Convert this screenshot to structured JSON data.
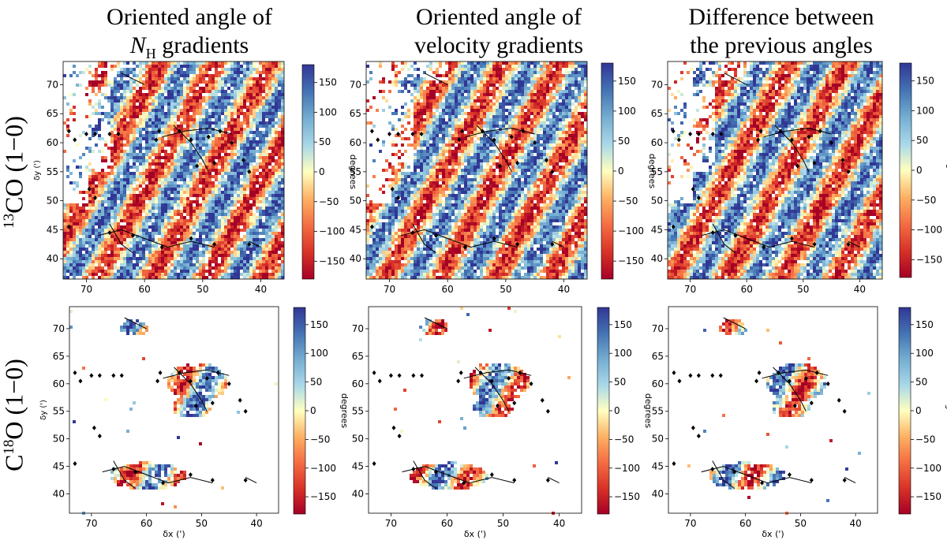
{
  "figure": {
    "column_titles": [
      {
        "line1": "Oriented angle of",
        "line2_italic": "N",
        "line2_sub": "H",
        "line2_rest": " gradients"
      },
      {
        "line1": "Oriented angle of",
        "line2": "velocity gradients"
      },
      {
        "line1": "Difference between",
        "line2": "the previous angles"
      }
    ],
    "row_labels": [
      {
        "sup": "13",
        "text": "CO",
        "transition": "(1−0)"
      },
      {
        "prefix": "C",
        "sup": "18",
        "text": "O",
        "transition": "(1−0)"
      }
    ]
  },
  "chart_data": [
    {
      "type": "heatmap",
      "row": "13CO (1-0)",
      "title": "Oriented angle of N_H gradients",
      "xlabel": "",
      "ylabel": "δy (')",
      "xlim": [
        74,
        36
      ],
      "ylim": [
        36.5,
        74
      ],
      "xticks": [
        70,
        60,
        50,
        40
      ],
      "yticks": [
        40,
        45,
        50,
        55,
        60,
        65,
        70
      ],
      "colorbar": {
        "label": "degrees",
        "ticks": [
          150,
          100,
          50,
          0,
          -50,
          -100,
          -150
        ],
        "range": [
          -180,
          180
        ],
        "colormap": "RdYlBu"
      },
      "coverage": "dense"
    },
    {
      "type": "heatmap",
      "row": "13CO (1-0)",
      "title": "Oriented angle of velocity gradients",
      "xlabel": "",
      "ylabel": "",
      "xlim": [
        74,
        36
      ],
      "ylim": [
        36.5,
        74
      ],
      "xticks": [
        70,
        60,
        50,
        40
      ],
      "yticks": [
        40,
        45,
        50,
        55,
        60,
        65,
        70
      ],
      "colorbar": {
        "label": "degrees",
        "ticks": [
          150,
          100,
          50,
          0,
          -50,
          -100,
          -150
        ],
        "range": [
          -180,
          180
        ],
        "colormap": "RdYlBu"
      },
      "coverage": "dense"
    },
    {
      "type": "heatmap",
      "row": "13CO (1-0)",
      "title": "Difference between the previous angles",
      "xlabel": "",
      "ylabel": "",
      "xlim": [
        74,
        36
      ],
      "ylim": [
        36.5,
        74
      ],
      "xticks": [
        70,
        60,
        50,
        40
      ],
      "yticks": [
        40,
        45,
        50,
        55,
        60,
        65,
        70
      ],
      "colorbar": {
        "label": "degrees",
        "ticks": [
          150,
          100,
          50,
          0,
          -50,
          -100,
          -150
        ],
        "range": [
          -180,
          180
        ],
        "colormap": "RdYlBu"
      },
      "coverage": "dense"
    },
    {
      "type": "heatmap",
      "row": "C18O (1-0)",
      "title": "",
      "xlabel": "δx (')",
      "ylabel": "δy (')",
      "xlim": [
        74,
        36
      ],
      "ylim": [
        36.5,
        74
      ],
      "xticks": [
        70,
        60,
        50,
        40
      ],
      "yticks": [
        40,
        45,
        50,
        55,
        60,
        65,
        70
      ],
      "colorbar": {
        "label": "degrees",
        "ticks": [
          150,
          100,
          50,
          0,
          -50,
          -100,
          -150
        ],
        "range": [
          -180,
          180
        ],
        "colormap": "RdYlBu"
      },
      "coverage": "sparse"
    },
    {
      "type": "heatmap",
      "row": "C18O (1-0)",
      "title": "",
      "xlabel": "δx (')",
      "ylabel": "",
      "xlim": [
        74,
        36
      ],
      "ylim": [
        36.5,
        74
      ],
      "xticks": [
        70,
        60,
        50,
        40
      ],
      "yticks": [
        40,
        45,
        50,
        55,
        60,
        65,
        70
      ],
      "colorbar": {
        "label": "degrees",
        "ticks": [
          150,
          100,
          50,
          0,
          -50,
          -100,
          -150
        ],
        "range": [
          -180,
          180
        ],
        "colormap": "RdYlBu"
      },
      "coverage": "sparse"
    },
    {
      "type": "heatmap",
      "row": "C18O (1-0)",
      "title": "",
      "xlabel": "δx (')",
      "ylabel": "",
      "xlim": [
        74,
        36
      ],
      "ylim": [
        36.5,
        74
      ],
      "xticks": [
        70,
        60,
        50,
        40
      ],
      "yticks": [
        40,
        45,
        50,
        55,
        60,
        65,
        70
      ],
      "colorbar": {
        "label": "degrees",
        "ticks": [
          150,
          100,
          50,
          0,
          -50,
          -100,
          -150
        ],
        "range": [
          -180,
          180
        ],
        "colormap": "RdYlBu"
      },
      "coverage": "sparse"
    }
  ],
  "markers": {
    "diamond_positions": [
      [
        73,
        62
      ],
      [
        72,
        60.5
      ],
      [
        70,
        61.5
      ],
      [
        68.5,
        61.5
      ],
      [
        66,
        61.5
      ],
      [
        64.5,
        61.5
      ],
      [
        58,
        60.5
      ],
      [
        57.5,
        62
      ],
      [
        54,
        62
      ],
      [
        52,
        60.5
      ],
      [
        49,
        61
      ],
      [
        47,
        62
      ],
      [
        45,
        60
      ],
      [
        43,
        57
      ],
      [
        42,
        55
      ],
      [
        48,
        56.5
      ],
      [
        51,
        56
      ],
      [
        69.5,
        52
      ],
      [
        68.5,
        50.5
      ],
      [
        73,
        45.5
      ],
      [
        66,
        44.5
      ],
      [
        62,
        44
      ],
      [
        57,
        42
      ],
      [
        52,
        43.5
      ],
      [
        48,
        42.5
      ],
      [
        42,
        42.5
      ]
    ]
  }
}
